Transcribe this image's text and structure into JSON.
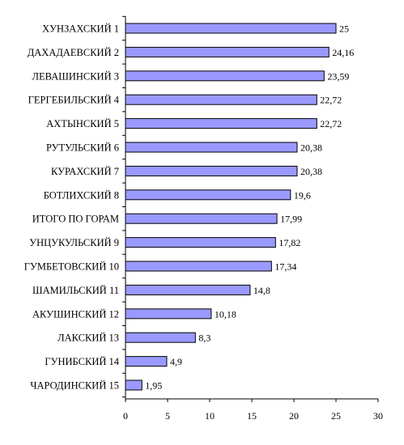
{
  "chart_data": {
    "type": "bar",
    "orientation": "horizontal",
    "title": "",
    "xlabel": "",
    "ylabel": "",
    "xlim": [
      0,
      30
    ],
    "x_ticks": [
      0,
      5,
      10,
      15,
      20,
      25,
      30
    ],
    "grid": false,
    "legend": "none",
    "bar_color": "#9999ff",
    "bar_edge_color": "#000000",
    "categories": [
      "ХУНЗАХСКИЙ 1",
      "ДАХАДАЕВСКИЙ 2",
      "ЛЕВАШИНСКИЙ 3",
      "ГЕРГЕБИЛЬСКИЙ 4",
      "АХТЫНСКИЙ 5",
      "РУТУЛЬСКИЙ 6",
      "КУРАХСКИЙ 7",
      "БОТЛИХСКИЙ 8",
      "ИТОГО ПО ГОРАМ",
      "УНЦУКУЛЬСКИЙ 9",
      "ГУМБЕТОВСКИЙ 10",
      "ШАМИЛЬСКИЙ 11",
      "АКУШИНСКИЙ 12",
      "ЛАКСКИЙ 13",
      "ГУНИБСКИЙ 14",
      "ЧАРОДИНСКИЙ 15"
    ],
    "values": [
      25,
      24.16,
      23.59,
      22.72,
      22.72,
      20.38,
      20.38,
      19.6,
      17.99,
      17.82,
      17.34,
      14.8,
      10.18,
      8.3,
      4.9,
      1.95
    ],
    "value_labels": [
      "25",
      "24,16",
      "23,59",
      "22,72",
      "22,72",
      "20,38",
      "20,38",
      "19,6",
      "17,99",
      "17,82",
      "17,34",
      "14,8",
      "10,18",
      "8,3",
      "4,9",
      "1,95"
    ]
  }
}
